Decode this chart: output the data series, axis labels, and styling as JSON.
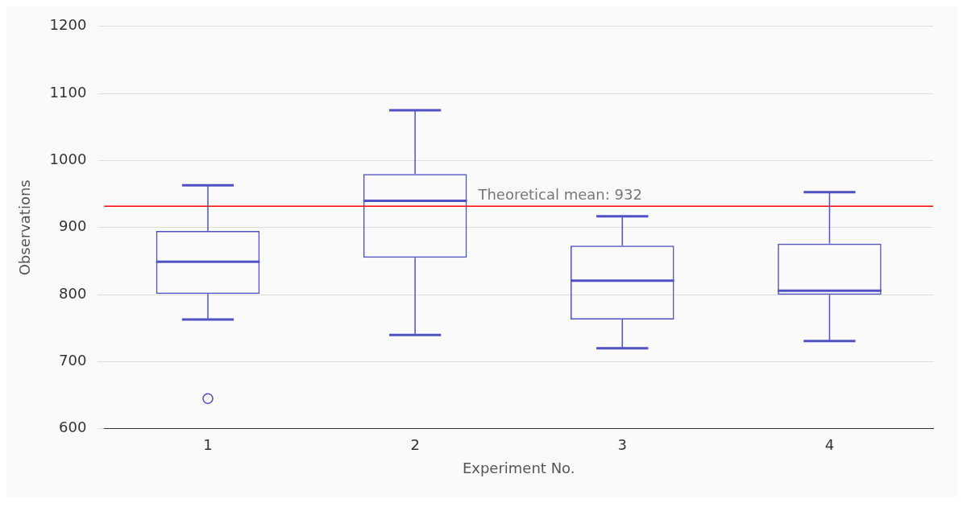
{
  "chart_data": {
    "type": "box",
    "xlabel": "Experiment No.",
    "ylabel": "Observations",
    "categories": [
      "1",
      "2",
      "3",
      "4"
    ],
    "series": [
      {
        "color": "#5151c6",
        "boxes": [
          {
            "low": 763,
            "q1": 801,
            "median": 849,
            "q3": 895,
            "high": 963,
            "outliers": [
              645
            ]
          },
          {
            "low": 740,
            "q1": 855,
            "median": 940,
            "q3": 980,
            "high": 1075
          },
          {
            "low": 720,
            "q1": 763,
            "median": 821,
            "q3": 873,
            "high": 917
          },
          {
            "low": 731,
            "q1": 800,
            "median": 806,
            "q3": 876,
            "high": 953
          }
        ]
      }
    ],
    "ylim": [
      600,
      1200
    ],
    "yticks": [
      600,
      700,
      800,
      900,
      1000,
      1100,
      1200
    ],
    "grid": "y",
    "legend": false,
    "ref_lines": [
      {
        "axis": "y",
        "value": 932,
        "label": "Theoretical mean: 932",
        "color": "#ff0000"
      }
    ]
  }
}
